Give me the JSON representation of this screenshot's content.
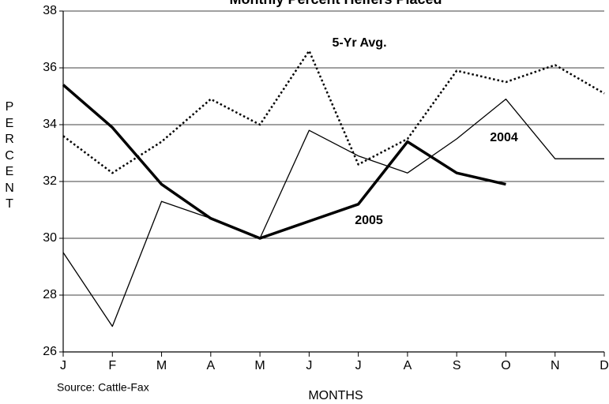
{
  "chart_data": {
    "type": "line",
    "title": "Monthly Percent Heifers Placed",
    "x_label": "MONTHS",
    "y_label": "PERCENT",
    "source": "Source:  Cattle-Fax",
    "categories": [
      "J",
      "F",
      "M",
      "A",
      "M",
      "J",
      "J",
      "A",
      "S",
      "O",
      "N",
      "D"
    ],
    "series": [
      {
        "name": "5-Yr Avg.",
        "color": "#000000",
        "line_width": 2.5,
        "dotted": true,
        "values": [
          33.6,
          32.3,
          33.4,
          34.9,
          34.0,
          36.6,
          32.6,
          33.5,
          35.9,
          35.5,
          36.1,
          35.1
        ]
      },
      {
        "name": "2004",
        "color": "#000000",
        "line_width": 1.3,
        "dotted": false,
        "values": [
          29.5,
          26.9,
          31.3,
          30.7,
          30.0,
          33.8,
          32.9,
          32.3,
          33.5,
          34.9,
          32.8,
          32.8
        ]
      },
      {
        "name": "2005",
        "color": "#000000",
        "line_width": 3.5,
        "dotted": false,
        "values": [
          35.4,
          33.9,
          31.9,
          30.7,
          30.0,
          30.6,
          31.2,
          33.4,
          32.3,
          31.9,
          null,
          null
        ]
      }
    ],
    "ylim": [
      26,
      38
    ],
    "yticks": [
      26,
      28,
      30,
      32,
      34,
      36,
      38
    ],
    "grid": true
  }
}
